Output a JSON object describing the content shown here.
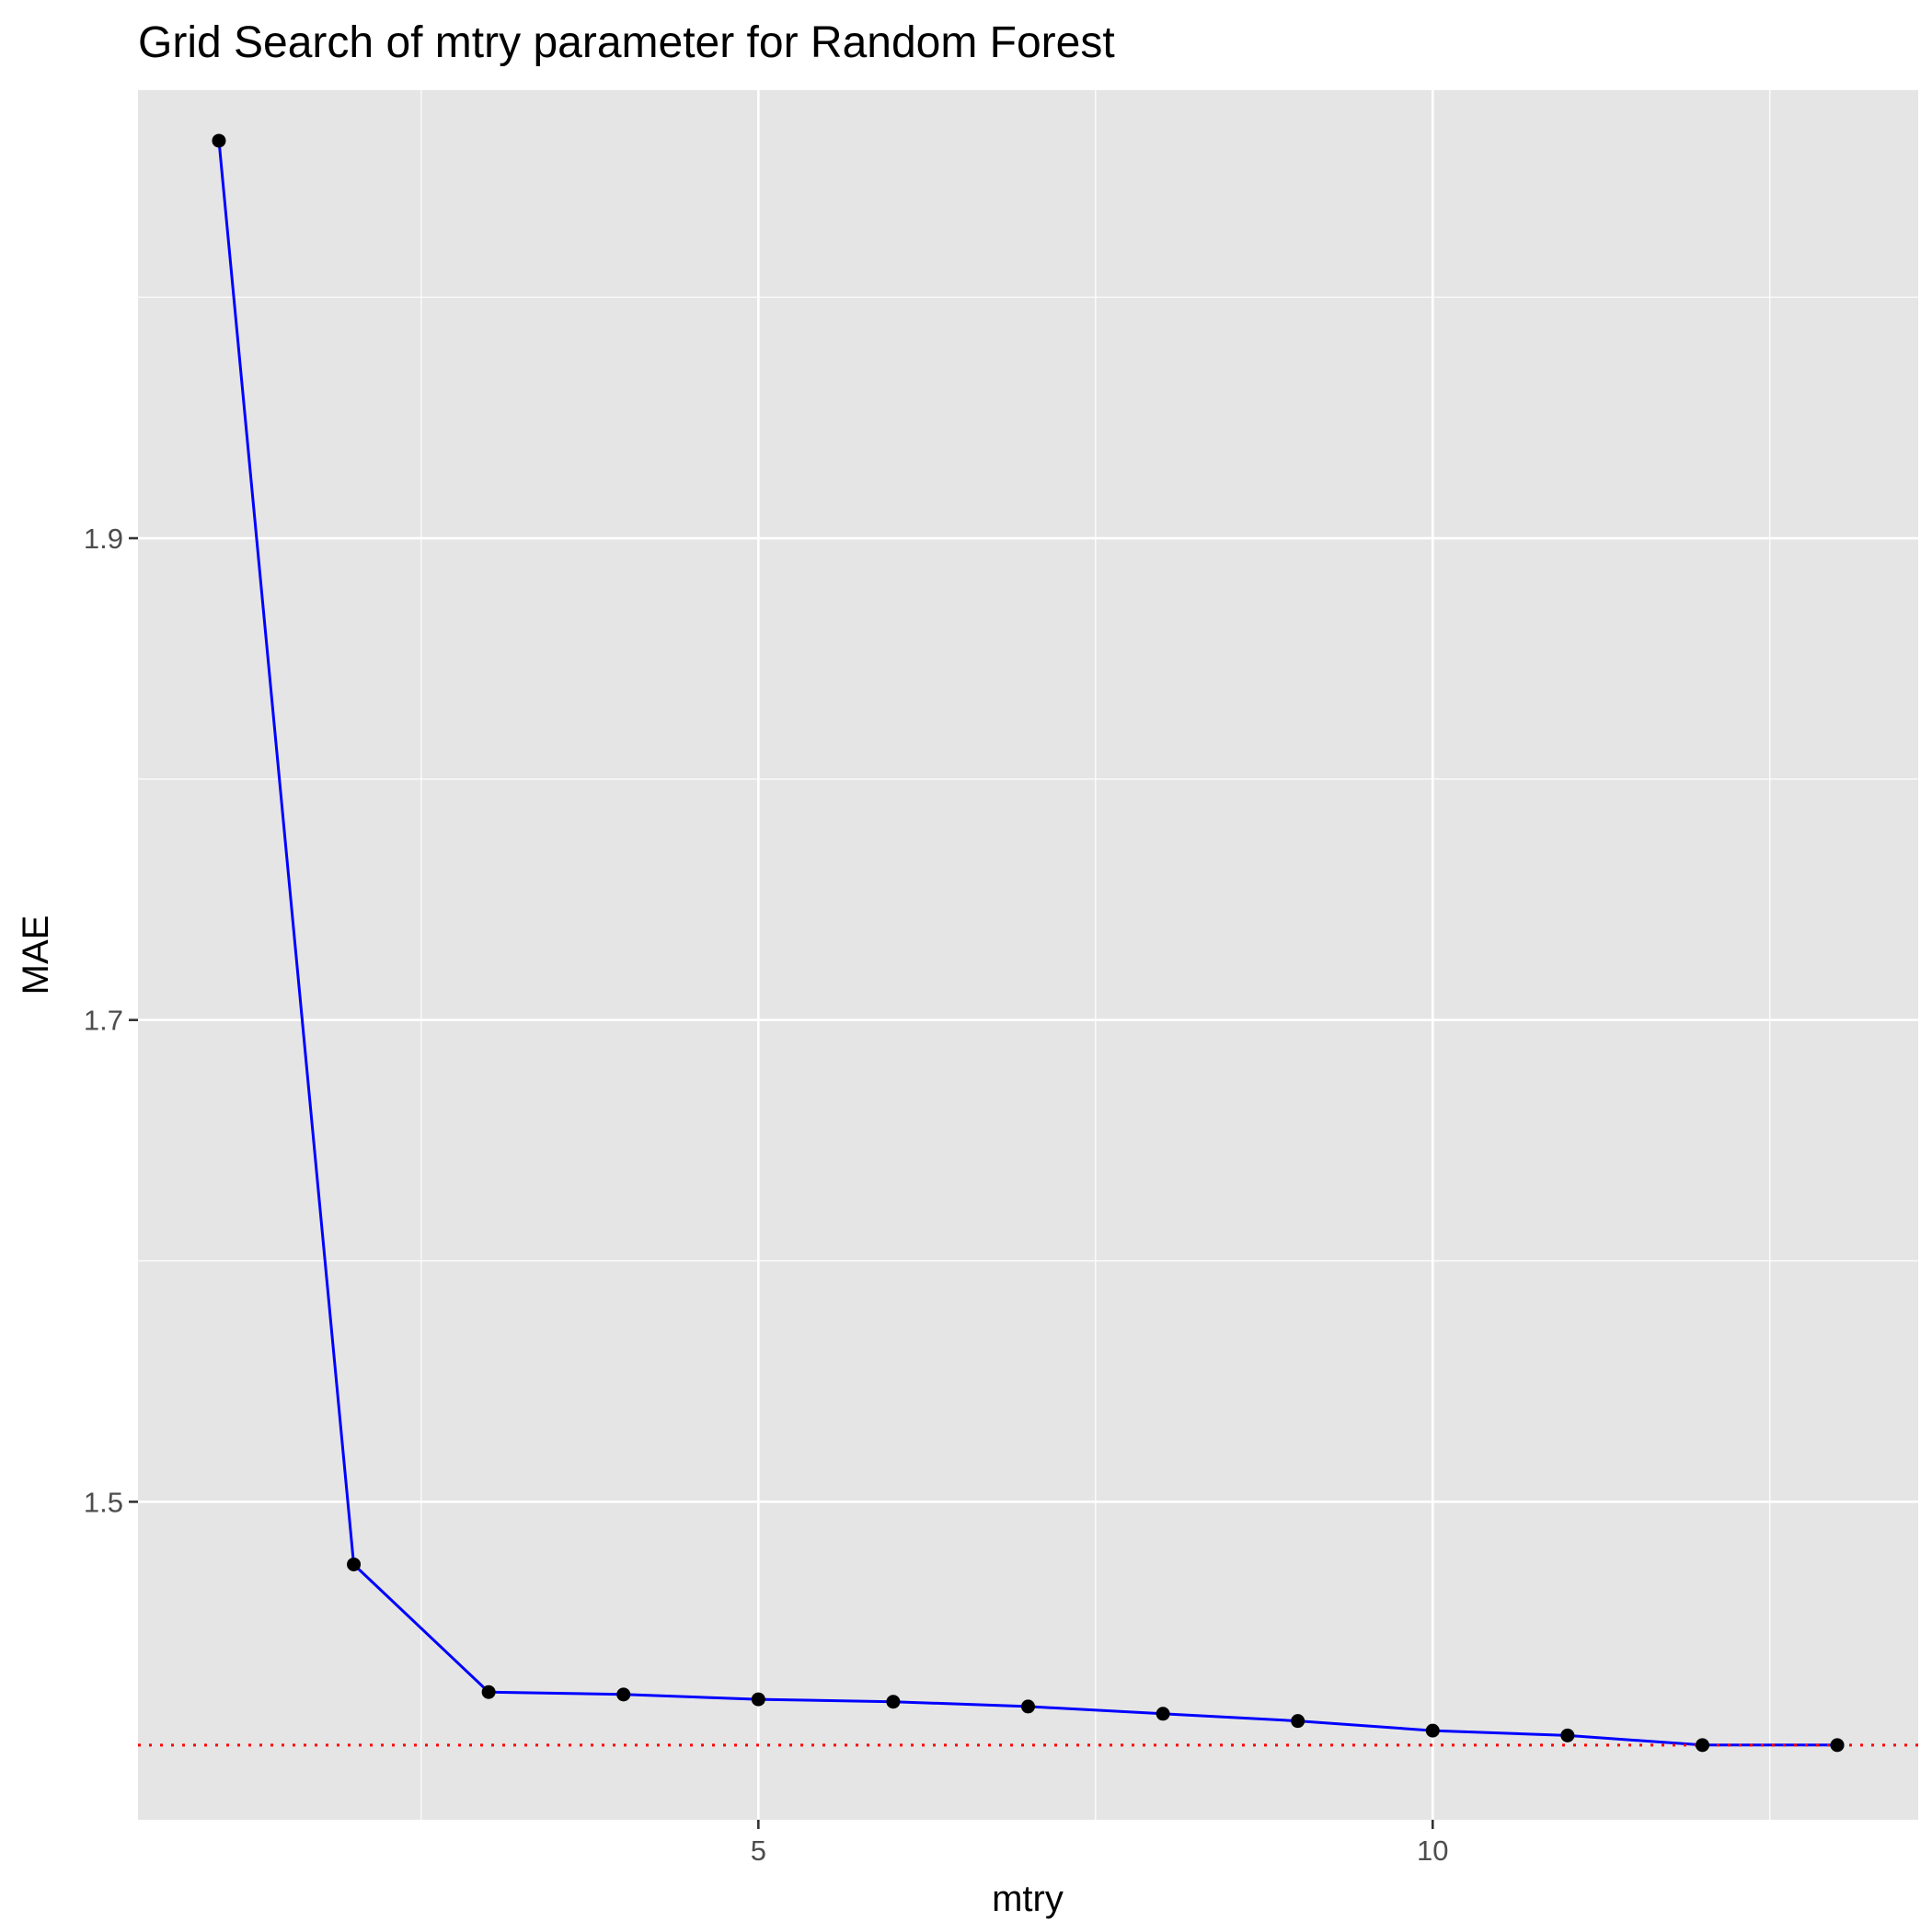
{
  "chart_data": {
    "type": "line",
    "title": "Grid Search of mtry parameter for Random Forest",
    "xlabel": "mtry",
    "ylabel": "MAE",
    "xlim": [
      0.4,
      13.6
    ],
    "ylim": [
      1.368,
      2.086
    ],
    "x_ticks": [
      5,
      10
    ],
    "y_ticks": [
      1.5,
      1.7,
      1.9
    ],
    "grid": true,
    "legend": "none",
    "series": [
      {
        "color": "#0000ff",
        "point_color": "#000000",
        "x": [
          1,
          2,
          3,
          4,
          5,
          6,
          7,
          8,
          9,
          10,
          11,
          12,
          13
        ],
        "values": [
          2.065,
          1.474,
          1.421,
          1.42,
          1.418,
          1.417,
          1.415,
          1.412,
          1.409,
          1.405,
          1.403,
          1.399,
          1.399
        ]
      }
    ],
    "reference_line": {
      "y": 1.399,
      "color": "#ff0000",
      "style": "dotted"
    }
  }
}
